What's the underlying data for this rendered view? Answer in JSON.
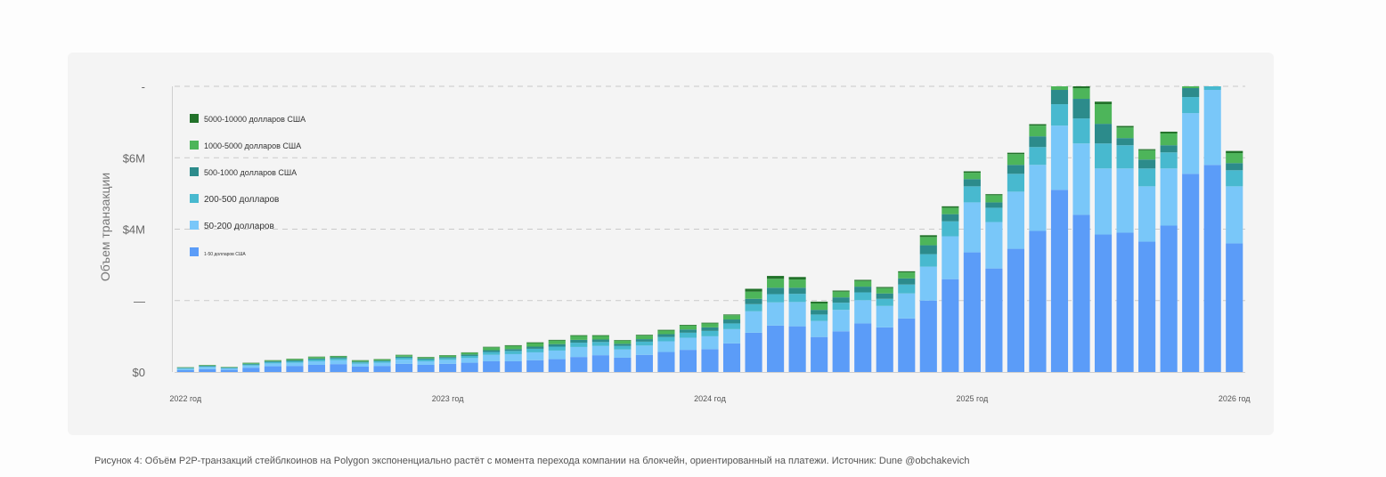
{
  "caption": "Рисунок 4: Объём P2P-транзакций стейблкоинов на Polygon экспоненциально растёт с момента перехода компании на блокчейн, ориентированный на платежи. Источник: Dune @obchakevich",
  "chart_data": {
    "type": "bar",
    "stacked": true,
    "title": "",
    "xlabel": "",
    "ylabel": "Объем транзакции",
    "ylim": [
      0,
      8000000
    ],
    "yticks": [
      {
        "value": 0,
        "label": "$0"
      },
      {
        "value": 2000000,
        "label": "—"
      },
      {
        "value": 4000000,
        "label": "$4M"
      },
      {
        "value": 6000000,
        "label": "$6M"
      },
      {
        "value": 8000000,
        "label": "-"
      }
    ],
    "xticks": [
      {
        "index": 0,
        "label": "2022 год"
      },
      {
        "index": 12,
        "label": "2023 год"
      },
      {
        "index": 24,
        "label": "2024 год"
      },
      {
        "index": 36,
        "label": "2025 год"
      },
      {
        "index": 48,
        "label": "2026 год"
      }
    ],
    "grid": true,
    "legend_position": "top-left",
    "categories": [
      "2022-01",
      "2022-02",
      "2022-03",
      "2022-04",
      "2022-05",
      "2022-06",
      "2022-07",
      "2022-08",
      "2022-09",
      "2022-10",
      "2022-11",
      "2022-12",
      "2023-01",
      "2023-02",
      "2023-03",
      "2023-04",
      "2023-05",
      "2023-06",
      "2023-07",
      "2023-08",
      "2023-09",
      "2023-10",
      "2023-11",
      "2023-12",
      "2024-01",
      "2024-02",
      "2024-03",
      "2024-04",
      "2024-05",
      "2024-06",
      "2024-07",
      "2024-08",
      "2024-09",
      "2024-10",
      "2024-11",
      "2024-12",
      "2025-01",
      "2025-02",
      "2025-03",
      "2025-04",
      "2025-05",
      "2025-06",
      "2025-07",
      "2025-08",
      "2025-09",
      "2025-10",
      "2025-11",
      "2025-12",
      "2026-01"
    ],
    "series": [
      {
        "name": "1-50 долларов США",
        "color": "#5b9cf8",
        "values": [
          50000,
          80000,
          60000,
          120000,
          160000,
          170000,
          200000,
          220000,
          150000,
          170000,
          230000,
          200000,
          230000,
          260000,
          300000,
          300000,
          330000,
          360000,
          420000,
          470000,
          400000,
          480000,
          560000,
          620000,
          640000,
          800000,
          1100000,
          1300000,
          1280000,
          980000,
          1140000,
          1360000,
          1250000,
          1500000,
          2000000,
          2600000,
          3350000,
          2900000,
          3450000,
          3950000,
          5100000,
          4400000,
          3850000,
          3900000,
          3650000,
          4100000,
          5550000,
          5800000,
          3600000
        ]
      },
      {
        "name": "50-200 долларов",
        "color": "#79c7f9",
        "values": [
          40000,
          60000,
          40000,
          60000,
          80000,
          90000,
          100000,
          110000,
          80000,
          90000,
          120000,
          100000,
          110000,
          130000,
          180000,
          200000,
          220000,
          240000,
          280000,
          260000,
          230000,
          260000,
          300000,
          340000,
          360000,
          400000,
          600000,
          650000,
          680000,
          450000,
          600000,
          650000,
          600000,
          700000,
          950000,
          1200000,
          1400000,
          1300000,
          1600000,
          1850000,
          1800000,
          2000000,
          1850000,
          1800000,
          1550000,
          1600000,
          1700000,
          2100000,
          1600000
        ]
      },
      {
        "name": "200-500 долларов",
        "color": "#48b9cf",
        "values": [
          20000,
          20000,
          15000,
          30000,
          40000,
          40000,
          50000,
          50000,
          40000,
          40000,
          50000,
          50000,
          50000,
          60000,
          80000,
          90000,
          100000,
          110000,
          120000,
          110000,
          100000,
          110000,
          120000,
          140000,
          150000,
          160000,
          200000,
          230000,
          230000,
          180000,
          200000,
          220000,
          200000,
          250000,
          350000,
          420000,
          450000,
          400000,
          500000,
          500000,
          600000,
          700000,
          700000,
          650000,
          500000,
          450000,
          450000,
          200000,
          450000
        ]
      },
      {
        "name": "500-1000 долларов США",
        "color": "#2c8b8b",
        "values": [
          10000,
          15000,
          10000,
          20000,
          20000,
          30000,
          30000,
          30000,
          20000,
          20000,
          30000,
          30000,
          30000,
          40000,
          50000,
          50000,
          60000,
          70000,
          80000,
          70000,
          60000,
          70000,
          80000,
          90000,
          100000,
          110000,
          150000,
          180000,
          170000,
          130000,
          150000,
          160000,
          150000,
          170000,
          250000,
          200000,
          200000,
          150000,
          250000,
          300000,
          400000,
          550000,
          550000,
          200000,
          250000,
          200000,
          250000,
          0,
          200000
        ]
      },
      {
        "name": "1000-5000 долларов США",
        "color": "#4db55a",
        "values": [
          10000,
          15000,
          10000,
          20000,
          20000,
          30000,
          40000,
          30000,
          30000,
          30000,
          40000,
          30000,
          40000,
          50000,
          80000,
          90000,
          100000,
          100000,
          110000,
          100000,
          90000,
          100000,
          100000,
          110000,
          110000,
          120000,
          200000,
          250000,
          230000,
          180000,
          160000,
          160000,
          150000,
          170000,
          230000,
          180000,
          180000,
          200000,
          300000,
          300000,
          350000,
          300000,
          550000,
          300000,
          260000,
          330000,
          320000,
          60000,
          280000
        ]
      },
      {
        "name": "5000-10000 долларов США",
        "color": "#22722a",
        "values": [
          5000,
          5000,
          5000,
          8000,
          10000,
          10000,
          10000,
          10000,
          10000,
          10000,
          10000,
          10000,
          10000,
          10000,
          15000,
          20000,
          20000,
          20000,
          20000,
          20000,
          15000,
          20000,
          20000,
          20000,
          20000,
          20000,
          80000,
          80000,
          70000,
          50000,
          30000,
          30000,
          30000,
          30000,
          50000,
          40000,
          40000,
          30000,
          40000,
          40000,
          50000,
          60000,
          70000,
          40000,
          30000,
          50000,
          40000,
          10000,
          60000
        ]
      }
    ]
  }
}
